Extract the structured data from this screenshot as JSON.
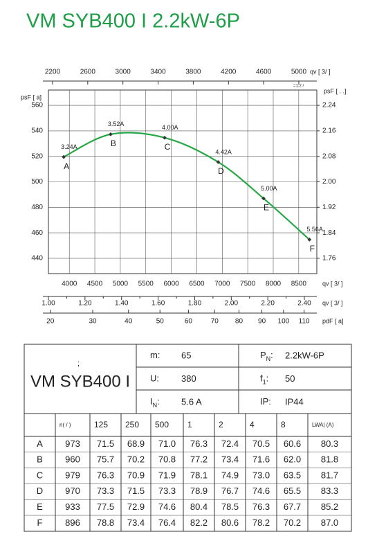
{
  "title": "VM SYB400 I 2.2kW-6P",
  "chart_data": {
    "type": "line",
    "y_label": "psF [  a]",
    "y2_label": "psF [  . .]",
    "x": [
      3890,
      4810,
      5870,
      6920,
      7810,
      8710
    ],
    "series": [
      {
        "color": "#27a845",
        "values": [
          519.5,
          537.3,
          534.6,
          515.5,
          487,
          454.7
        ],
        "point_labels": [
          "A",
          "B",
          "C",
          "D",
          "E",
          "F"
        ],
        "annotations": [
          "3.24A",
          "3.52A",
          "4.00A",
          "4.42A",
          "5.00A",
          "5.56A"
        ]
      }
    ],
    "x_label": "qv [  3/  ]",
    "xlim": [
      3590,
      8855
    ],
    "xticks": [
      4000,
      4500,
      5000,
      5500,
      6000,
      6500,
      7000,
      7500,
      8000,
      8500
    ],
    "ylim": [
      428,
      572
    ],
    "yticks": [
      440,
      460,
      480,
      500,
      520,
      540,
      560
    ],
    "y2lim": [
      1.712,
      2.288
    ],
    "y2ticks": [
      1.76,
      1.84,
      1.92,
      {
        "value": 2,
        "label": "2.00"
      },
      2.08,
      2.16,
      2.24
    ],
    "grid": true,
    "extra_axes": [
      {
        "position": "top",
        "label": "qv [  3/   ]",
        "sublabel": "=1.2  /  ",
        "lim": [
          2153,
          5205
        ],
        "ticks": [
          2200,
          2600,
          3000,
          3400,
          3800,
          4200,
          4600,
          5000
        ]
      },
      {
        "position": "bottom",
        "label": "qv [  3/  ]",
        "lim": [
          1.0,
          2.468
        ],
        "ticks": [
          {
            "value": 1,
            "label": "1.00"
          },
          {
            "value": 1.2,
            "label": "1.20"
          },
          {
            "value": 1.4,
            "label": "1.40"
          },
          {
            "value": 1.6,
            "label": "1.60"
          },
          {
            "value": 1.8,
            "label": "1.80"
          },
          {
            "value": 2,
            "label": "2.00"
          },
          {
            "value": 2.2,
            "label": "2.20"
          },
          {
            "value": 2.4,
            "label": "2.40"
          }
        ],
        "minor_ticks": [
          1.1,
          1.3,
          1.5,
          1.7,
          1.9,
          2.1,
          2.3
        ]
      },
      {
        "position": "bottom",
        "label": "pdF [  a]",
        "scale": "sqrt",
        "lim": [
          19.6,
          116.4
        ],
        "ticks": [
          20,
          30,
          40,
          50,
          60,
          70,
          80,
          90,
          100,
          110
        ]
      }
    ]
  },
  "spec": {
    "mark": ";",
    "model": "VM SYB400 I",
    "items": [
      {
        "label": "m:",
        "value": "65"
      },
      {
        "label": "P",
        "sub": "N",
        "suffix": ":",
        "value": "2.2kW-6P"
      },
      {
        "label": "U:",
        "value": "380"
      },
      {
        "label": "f",
        "sub": "1",
        "suffix": ":",
        "value": "50"
      },
      {
        "label": "I",
        "sub": "N",
        "suffix": ":",
        "value": "5.6 A"
      },
      {
        "label": "IP:",
        "value": "IP44"
      }
    ]
  },
  "table": {
    "header": [
      "n(  /  )",
      "125",
      "250",
      "500",
      "1",
      "2",
      "4",
      "8",
      "LWA|     (A)"
    ],
    "rows": [
      [
        "A",
        "973",
        "71.5",
        "68.9",
        "71.0",
        "76.3",
        "72.4",
        "70.5",
        "60.6",
        "80.3"
      ],
      [
        "B",
        "960",
        "75.7",
        "70.2",
        "70.8",
        "77.2",
        "73.4",
        "71.6",
        "62.0",
        "81.8"
      ],
      [
        "C",
        "979",
        "76.3",
        "70.9",
        "71.9",
        "78.1",
        "74.9",
        "73.0",
        "63.5",
        "81.7"
      ],
      [
        "D",
        "970",
        "73.3",
        "71.5",
        "73.3",
        "78.9",
        "76.7",
        "74.6",
        "65.5",
        "83.3"
      ],
      [
        "E",
        "933",
        "77.5",
        "72.9",
        "74.6",
        "80.4",
        "78.5",
        "76.3",
        "67.7",
        "85.2"
      ],
      [
        "F",
        "896",
        "78.8",
        "73.4",
        "76.4",
        "82.2",
        "80.6",
        "78.2",
        "70.2",
        "87.0"
      ]
    ]
  }
}
